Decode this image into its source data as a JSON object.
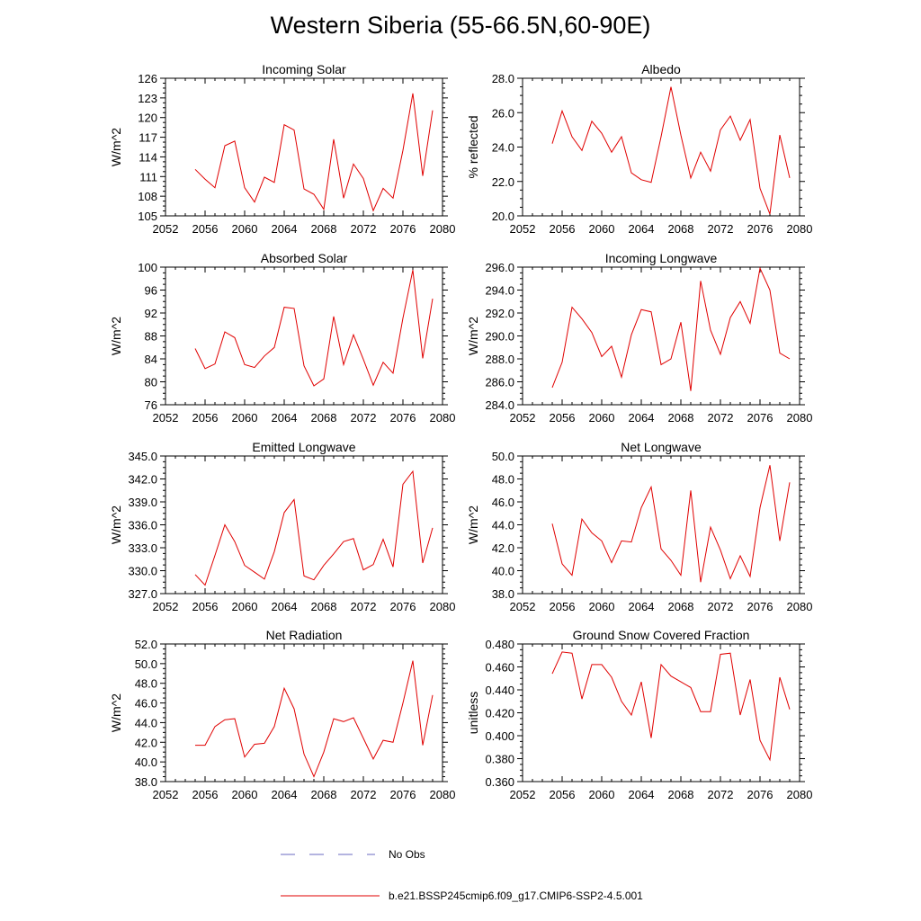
{
  "title": "Western Siberia (55-66.5N,60-90E)",
  "legend": [
    {
      "label": "No Obs",
      "color": "#6a6ac0",
      "dash": true
    },
    {
      "label": "b.e21.BSSP245cmip6.f09_g17.CMIP6-SSP2-4.5.001",
      "color": "#e00000",
      "dash": false
    }
  ],
  "chart_data": [
    {
      "type": "line",
      "title": "Incoming Solar",
      "ylabel": "W/m^2",
      "xlim": [
        2052,
        2080
      ],
      "ylim": [
        105,
        126
      ],
      "x_ticks": [
        2052,
        2056,
        2060,
        2064,
        2068,
        2072,
        2076,
        2080
      ],
      "y_ticks": [
        "105",
        "108",
        "111",
        "114",
        "117",
        "120",
        "123",
        "126"
      ],
      "series": [
        {
          "color": "#e00000",
          "x": [
            2055,
            2056,
            2057,
            2058,
            2059,
            2060,
            2061,
            2062,
            2063,
            2064,
            2065,
            2066,
            2067,
            2068,
            2069,
            2070,
            2071,
            2072,
            2073,
            2074,
            2075,
            2076,
            2077,
            2078,
            2079
          ],
          "y": [
            112.1,
            110.6,
            109.3,
            115.7,
            116.4,
            109.3,
            107.1,
            110.9,
            110.1,
            118.9,
            118.1,
            109.1,
            108.3,
            106.0,
            116.7,
            107.7,
            112.9,
            110.7,
            105.8,
            109.2,
            107.7,
            115.0,
            123.7,
            111.1,
            121.1
          ]
        }
      ]
    },
    {
      "type": "line",
      "title": "Albedo",
      "ylabel": "% reflected",
      "xlim": [
        2052,
        2080
      ],
      "ylim": [
        20.0,
        28.0
      ],
      "x_ticks": [
        2052,
        2056,
        2060,
        2064,
        2068,
        2072,
        2076,
        2080
      ],
      "y_ticks": [
        "20.0",
        "22.0",
        "24.0",
        "26.0",
        "28.0"
      ],
      "series": [
        {
          "color": "#e00000",
          "x": [
            2055,
            2056,
            2057,
            2058,
            2059,
            2060,
            2061,
            2062,
            2063,
            2064,
            2065,
            2066,
            2067,
            2068,
            2069,
            2070,
            2071,
            2072,
            2073,
            2074,
            2075,
            2076,
            2077,
            2078,
            2079
          ],
          "y": [
            24.2,
            26.1,
            24.6,
            23.8,
            25.5,
            24.8,
            23.7,
            24.6,
            22.5,
            22.1,
            21.95,
            24.6,
            27.5,
            24.7,
            22.2,
            23.7,
            22.6,
            25.0,
            25.8,
            24.4,
            25.6,
            21.6,
            20.1,
            24.7,
            22.2
          ]
        }
      ]
    },
    {
      "type": "line",
      "title": "Absorbed Solar",
      "ylabel": "W/m^2",
      "xlim": [
        2052,
        2080
      ],
      "ylim": [
        76,
        100
      ],
      "x_ticks": [
        2052,
        2056,
        2060,
        2064,
        2068,
        2072,
        2076,
        2080
      ],
      "y_ticks": [
        "76",
        "80",
        "84",
        "88",
        "92",
        "96",
        "100"
      ],
      "series": [
        {
          "color": "#e00000",
          "x": [
            2055,
            2056,
            2057,
            2058,
            2059,
            2060,
            2061,
            2062,
            2063,
            2064,
            2065,
            2066,
            2067,
            2068,
            2069,
            2070,
            2071,
            2072,
            2073,
            2074,
            2075,
            2076,
            2077,
            2078,
            2079
          ],
          "y": [
            85.8,
            82.3,
            83.1,
            88.7,
            87.7,
            83.0,
            82.5,
            84.5,
            86.0,
            93.0,
            92.8,
            82.8,
            79.3,
            80.5,
            91.4,
            83.0,
            88.2,
            83.9,
            79.4,
            83.4,
            81.5,
            91.1,
            99.5,
            84.1,
            94.5
          ]
        }
      ]
    },
    {
      "type": "line",
      "title": "Incoming Longwave",
      "ylabel": "W/m^2",
      "xlim": [
        2052,
        2080
      ],
      "ylim": [
        284.0,
        296.0
      ],
      "x_ticks": [
        2052,
        2056,
        2060,
        2064,
        2068,
        2072,
        2076,
        2080
      ],
      "y_ticks": [
        "284.0",
        "286.0",
        "288.0",
        "290.0",
        "292.0",
        "294.0",
        "296.0"
      ],
      "series": [
        {
          "color": "#e00000",
          "x": [
            2055,
            2056,
            2057,
            2058,
            2059,
            2060,
            2061,
            2062,
            2063,
            2064,
            2065,
            2066,
            2067,
            2068,
            2069,
            2070,
            2071,
            2072,
            2073,
            2074,
            2075,
            2076,
            2077,
            2078,
            2079
          ],
          "y": [
            285.5,
            287.7,
            292.5,
            291.5,
            290.3,
            288.2,
            289.1,
            286.4,
            290.1,
            292.3,
            292.1,
            287.5,
            288.0,
            291.2,
            285.2,
            294.8,
            290.5,
            288.4,
            291.6,
            293.0,
            291.1,
            295.9,
            294.0,
            288.5,
            288.0
          ]
        }
      ]
    },
    {
      "type": "line",
      "title": "Emitted Longwave",
      "ylabel": "W/m^2",
      "xlim": [
        2052,
        2080
      ],
      "ylim": [
        327.0,
        345.0
      ],
      "x_ticks": [
        2052,
        2056,
        2060,
        2064,
        2068,
        2072,
        2076,
        2080
      ],
      "y_ticks": [
        "327.0",
        "330.0",
        "333.0",
        "336.0",
        "339.0",
        "342.0",
        "345.0"
      ],
      "series": [
        {
          "color": "#e00000",
          "x": [
            2055,
            2056,
            2057,
            2058,
            2059,
            2060,
            2061,
            2062,
            2063,
            2064,
            2065,
            2066,
            2067,
            2068,
            2069,
            2070,
            2071,
            2072,
            2073,
            2074,
            2075,
            2076,
            2077,
            2078,
            2079
          ],
          "y": [
            329.5,
            328.1,
            332.0,
            336.0,
            333.8,
            330.7,
            329.8,
            328.9,
            332.5,
            337.6,
            339.3,
            329.3,
            328.8,
            330.7,
            332.2,
            333.8,
            334.2,
            330.1,
            330.8,
            334.1,
            330.5,
            341.3,
            343.0,
            331.0,
            335.6
          ]
        }
      ]
    },
    {
      "type": "line",
      "title": "Net Longwave",
      "ylabel": "W/m^2",
      "xlim": [
        2052,
        2080
      ],
      "ylim": [
        38.0,
        50.0
      ],
      "x_ticks": [
        2052,
        2056,
        2060,
        2064,
        2068,
        2072,
        2076,
        2080
      ],
      "y_ticks": [
        "38.0",
        "40.0",
        "42.0",
        "44.0",
        "46.0",
        "48.0",
        "50.0"
      ],
      "series": [
        {
          "color": "#e00000",
          "x": [
            2055,
            2056,
            2057,
            2058,
            2059,
            2060,
            2061,
            2062,
            2063,
            2064,
            2065,
            2066,
            2067,
            2068,
            2069,
            2070,
            2071,
            2072,
            2073,
            2074,
            2075,
            2076,
            2077,
            2078,
            2079
          ],
          "y": [
            44.1,
            40.6,
            39.6,
            44.5,
            43.3,
            42.6,
            40.7,
            42.6,
            42.5,
            45.5,
            47.3,
            41.9,
            40.9,
            39.6,
            47.0,
            39.0,
            43.8,
            41.8,
            39.3,
            41.3,
            39.5,
            45.5,
            49.2,
            42.6,
            47.7
          ]
        }
      ]
    },
    {
      "type": "line",
      "title": "Net Radiation",
      "ylabel": "W/m^2",
      "xlim": [
        2052,
        2080
      ],
      "ylim": [
        38.0,
        52.0
      ],
      "x_ticks": [
        2052,
        2056,
        2060,
        2064,
        2068,
        2072,
        2076,
        2080
      ],
      "y_ticks": [
        "38.0",
        "40.0",
        "42.0",
        "44.0",
        "46.0",
        "48.0",
        "50.0",
        "52.0"
      ],
      "series": [
        {
          "color": "#e00000",
          "x": [
            2055,
            2056,
            2057,
            2058,
            2059,
            2060,
            2061,
            2062,
            2063,
            2064,
            2065,
            2066,
            2067,
            2068,
            2069,
            2070,
            2071,
            2072,
            2073,
            2074,
            2075,
            2076,
            2077,
            2078,
            2079
          ],
          "y": [
            41.7,
            41.7,
            43.6,
            44.3,
            44.4,
            40.5,
            41.8,
            41.9,
            43.6,
            47.5,
            45.4,
            40.8,
            38.5,
            41.0,
            44.4,
            44.1,
            44.5,
            42.4,
            40.3,
            42.2,
            42.0,
            46.0,
            50.3,
            41.7,
            46.8
          ]
        }
      ]
    },
    {
      "type": "line",
      "title": "Ground Snow Covered Fraction",
      "ylabel": "unitless",
      "xlim": [
        2052,
        2080
      ],
      "ylim": [
        0.36,
        0.48
      ],
      "x_ticks": [
        2052,
        2056,
        2060,
        2064,
        2068,
        2072,
        2076,
        2080
      ],
      "y_ticks": [
        "0.360",
        "0.380",
        "0.400",
        "0.420",
        "0.440",
        "0.460",
        "0.480"
      ],
      "series": [
        {
          "color": "#e00000",
          "x": [
            2055,
            2056,
            2057,
            2058,
            2059,
            2060,
            2061,
            2062,
            2063,
            2064,
            2065,
            2066,
            2067,
            2068,
            2069,
            2070,
            2071,
            2072,
            2073,
            2074,
            2075,
            2076,
            2077,
            2078,
            2079
          ],
          "y": [
            0.454,
            0.473,
            0.472,
            0.432,
            0.462,
            0.462,
            0.451,
            0.43,
            0.418,
            0.447,
            0.398,
            0.462,
            0.452,
            0.447,
            0.442,
            0.421,
            0.421,
            0.471,
            0.472,
            0.418,
            0.449,
            0.396,
            0.379,
            0.451,
            0.423
          ]
        }
      ]
    }
  ]
}
